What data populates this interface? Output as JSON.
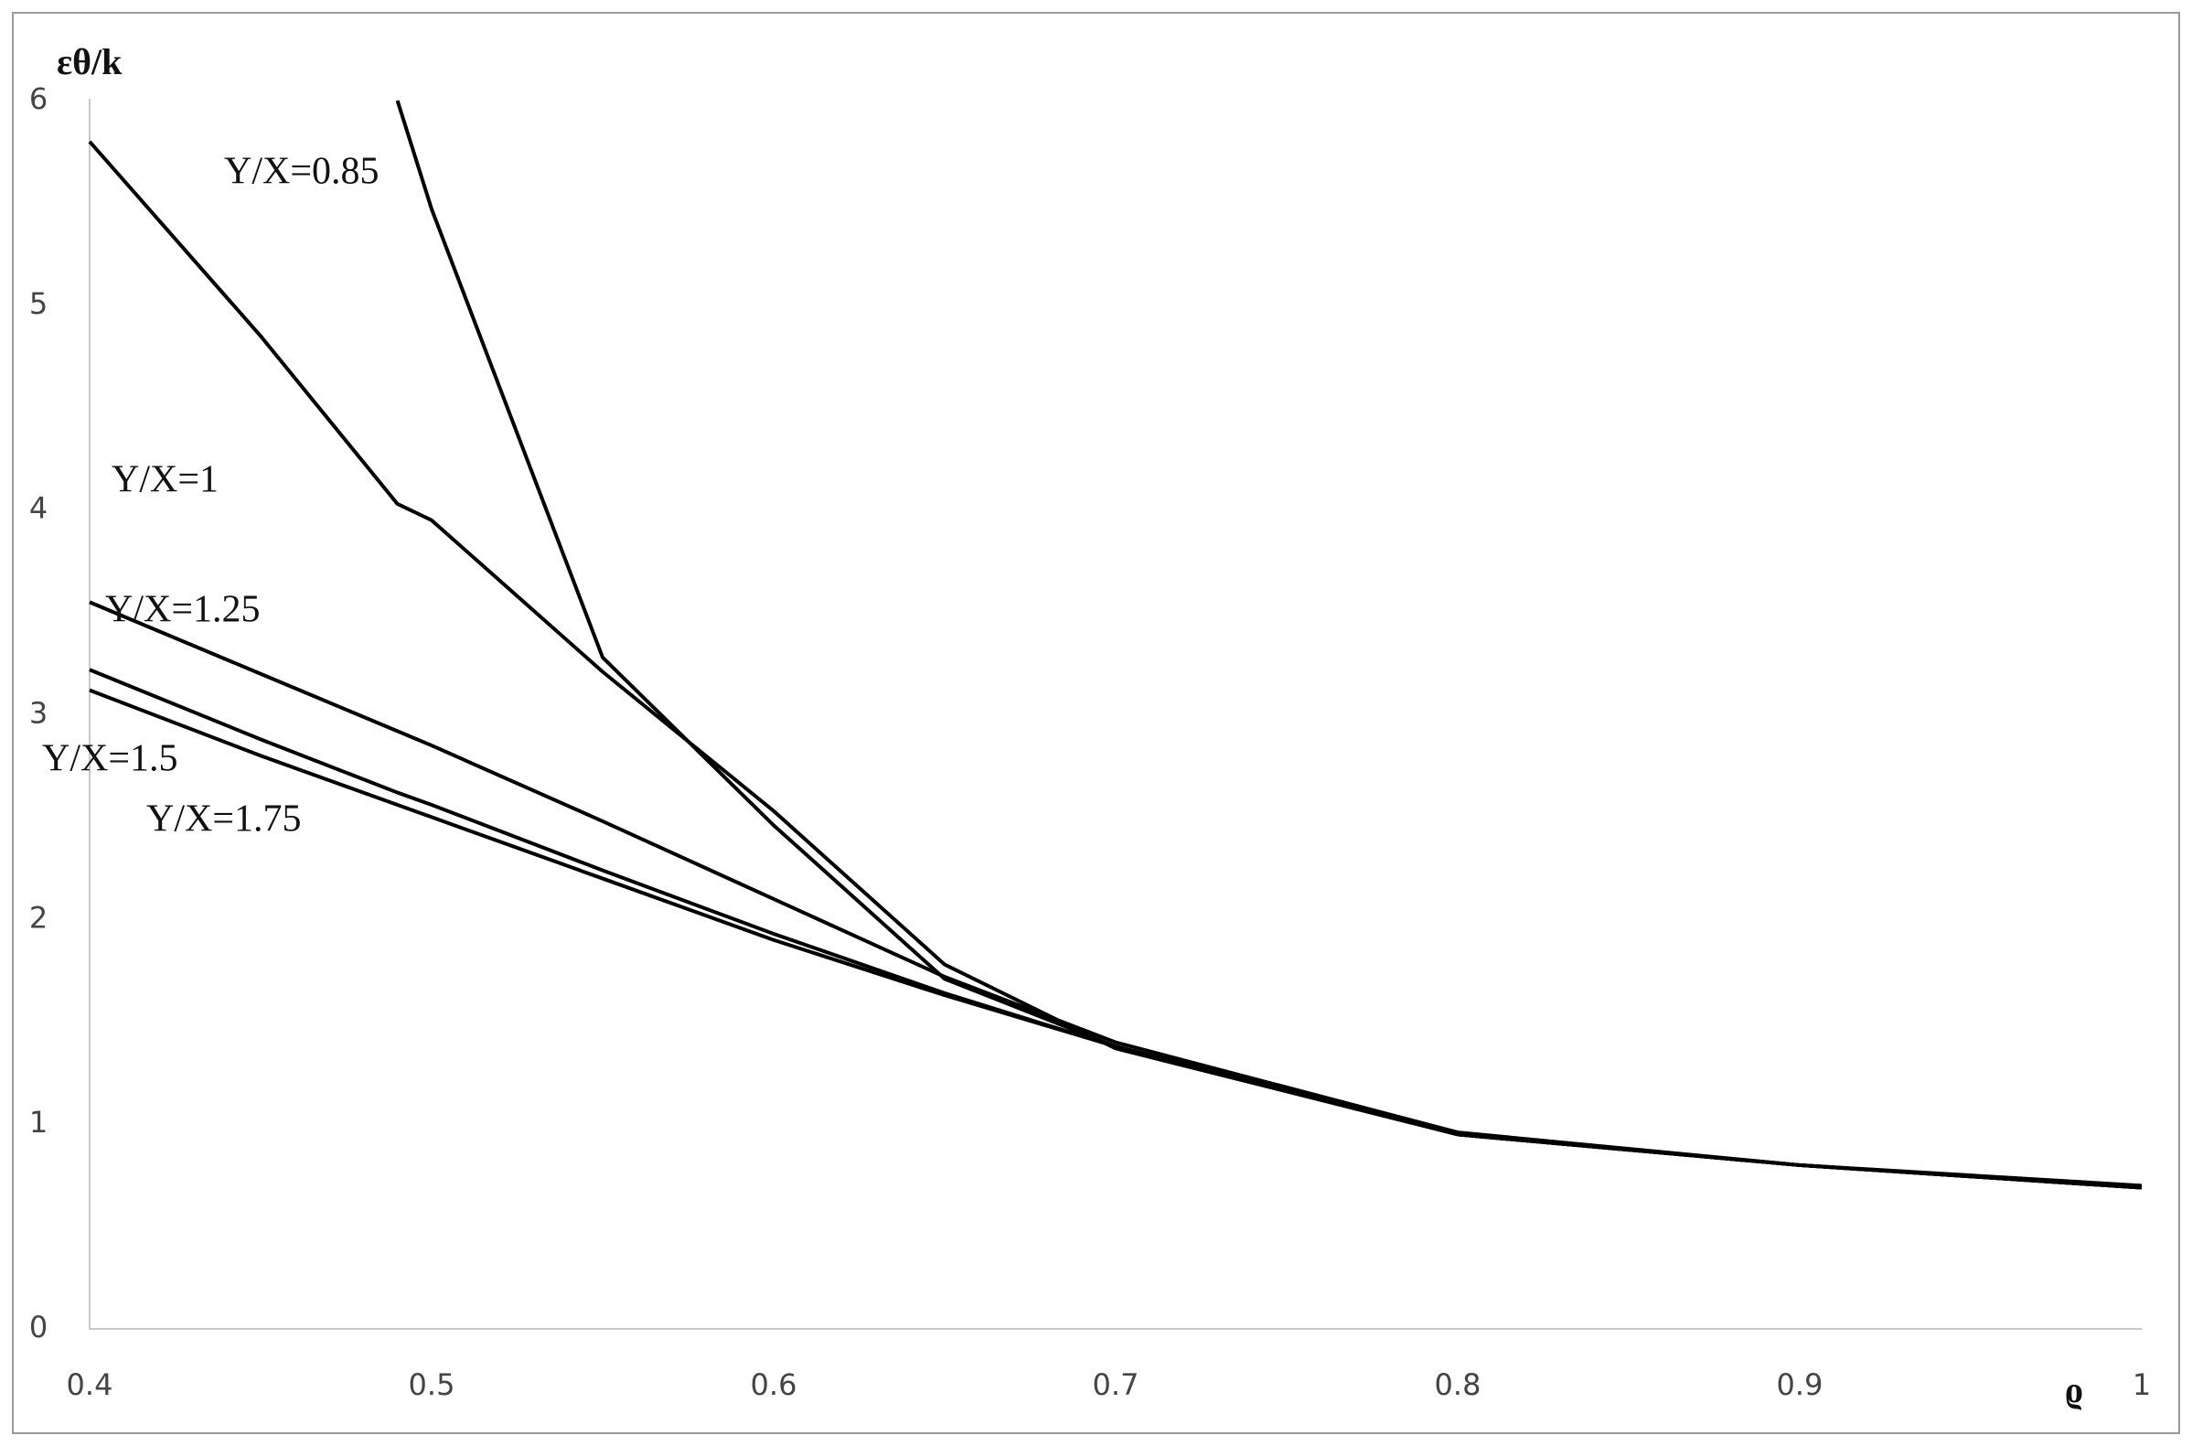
{
  "chart_data": {
    "type": "line",
    "y_label": "εθ/k",
    "x_label": "ϱ",
    "x": [
      0.4,
      0.45,
      0.49,
      0.5,
      0.55,
      0.6,
      0.65,
      0.7,
      0.8,
      0.9,
      1
    ],
    "series": [
      {
        "name": "Y/X=0.85",
        "color": "#000000",
        "values": [
          null,
          null,
          6,
          5.47,
          3.28,
          2.46,
          1.71,
          1.38,
          0.95,
          0.8,
          0.69
        ]
      },
      {
        "name": "Y/X=1",
        "color": "#000000",
        "values": [
          5.8,
          4.85,
          4.03,
          3.95,
          3.21,
          2.53,
          1.78,
          1.37,
          0.95,
          0.8,
          0.69
        ]
      },
      {
        "name": "Y/X=1.25",
        "color": "#000000",
        "values": [
          3.55,
          3.2,
          2.92,
          2.85,
          2.48,
          2.1,
          1.72,
          1.4,
          0.96,
          0.8,
          0.7
        ]
      },
      {
        "name": "Y/X=1.5",
        "color": "#000000",
        "values": [
          3.22,
          2.88,
          2.62,
          2.56,
          2.24,
          1.93,
          1.64,
          1.38,
          0.95,
          0.8,
          0.69
        ]
      },
      {
        "name": "Y/X=1.75",
        "color": "#000000",
        "values": [
          3.12,
          2.8,
          2.56,
          2.5,
          2.2,
          1.9,
          1.63,
          1.38,
          0.95,
          0.8,
          0.69
        ]
      }
    ],
    "xlim": [
      0.4,
      1
    ],
    "xticks": [
      0.4,
      0.5,
      0.6,
      0.7,
      0.8,
      0.9,
      1
    ],
    "ylim": [
      0,
      6
    ],
    "yticks": [
      0,
      1,
      2,
      3,
      4,
      5,
      6
    ],
    "grid": false
  }
}
